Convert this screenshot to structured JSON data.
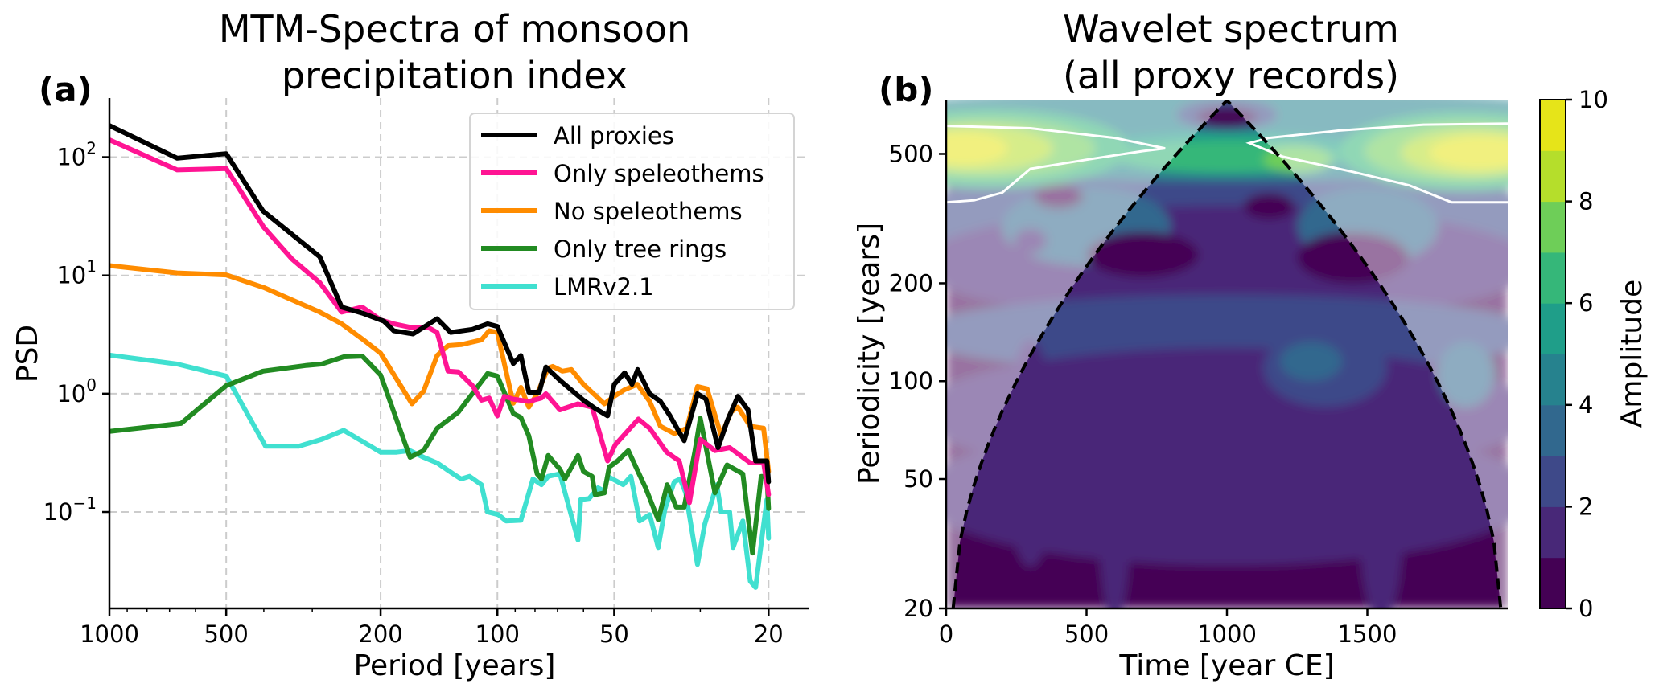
{
  "panel_a": {
    "label": "(a)",
    "title_line1": "MTM-Spectra of monsoon",
    "title_line2": "precipitation index"
  },
  "panel_b": {
    "label": "(b)",
    "title_line1": "Wavelet spectrum",
    "title_line2": "(all proxy records)"
  },
  "chart_data": [
    {
      "type": "line",
      "title": "MTM-Spectra of monsoon precipitation index",
      "xlabel": "Period [years]",
      "ylabel": "PSD",
      "xscale": "log",
      "yscale": "log",
      "x_inverted": true,
      "xlim": [
        1000,
        15.7
      ],
      "ylim": [
        0.0153,
        316
      ],
      "xticks": [
        1000,
        500,
        200,
        100,
        50,
        20
      ],
      "xtick_labels": [
        "1000",
        "500",
        "200",
        "100",
        "50",
        "20"
      ],
      "yticks": [
        0.1,
        1,
        10,
        100
      ],
      "ytick_labels": [
        {
          "base": "10",
          "exp": "−1"
        },
        {
          "base": "10",
          "exp": "0"
        },
        {
          "base": "10",
          "exp": "1"
        },
        {
          "base": "10",
          "exp": "2"
        }
      ],
      "grid": true,
      "legend_position": "top-right",
      "series": [
        {
          "name": "All proxies",
          "color": "#000000",
          "x": [
            1000,
            669,
            500,
            402,
            287,
            252,
            223,
            196,
            185,
            165,
            143,
            132,
            116,
            106,
            100,
            91,
            87,
            83,
            78,
            75,
            69,
            65,
            60,
            56,
            52,
            50,
            47,
            45,
            43.5,
            40.5,
            38,
            36,
            33,
            30.5,
            29,
            27,
            25.5,
            24,
            22.6,
            21.6,
            20.2,
            20
          ],
          "y": [
            185,
            98,
            107,
            35,
            14.4,
            5.4,
            4.8,
            4.1,
            3.4,
            3.2,
            4.3,
            3.3,
            3.5,
            3.9,
            3.7,
            1.8,
            2.1,
            1.03,
            1.03,
            1.68,
            1.3,
            1.1,
            0.88,
            0.75,
            0.65,
            1.2,
            1.5,
            1.2,
            1.6,
            1.0,
            0.86,
            0.66,
            0.4,
            1.0,
            0.9,
            0.35,
            0.6,
            0.95,
            0.73,
            0.27,
            0.27,
            0.18
          ]
        },
        {
          "name": "Only speleothems",
          "color": "#ff1493",
          "x": [
            1000,
            669,
            500,
            400,
            338,
            287,
            252,
            223,
            200,
            185,
            165,
            150,
            143,
            134,
            126,
            116,
            110,
            105,
            100,
            96,
            91,
            83,
            77,
            75,
            69,
            62,
            57,
            52,
            49.7,
            43.3,
            40.5,
            36.6,
            34,
            32,
            30,
            27.5,
            25.2,
            22.3,
            20.6,
            20
          ],
          "y": [
            140,
            78,
            80,
            25.5,
            13.7,
            8.7,
            4.9,
            5.4,
            4.2,
            3.9,
            3.6,
            3.6,
            3.3,
            1.55,
            1.53,
            1.17,
            0.88,
            0.92,
            0.65,
            0.95,
            0.9,
            0.86,
            0.92,
            1.0,
            0.73,
            0.82,
            0.77,
            0.27,
            0.37,
            0.61,
            0.51,
            0.32,
            0.27,
            0.12,
            0.41,
            0.33,
            0.35,
            0.26,
            0.26,
            0.14
          ]
        },
        {
          "name": "No speleothems",
          "color": "#ff8c00",
          "x": [
            1000,
            669,
            500,
            400,
            338,
            287,
            252,
            223,
            200,
            166,
            155,
            143,
            134,
            124,
            110,
            105,
            100,
            96,
            91,
            87,
            83,
            79,
            74,
            72,
            68,
            64.5,
            60,
            55,
            53,
            50,
            47,
            43.6,
            40.5,
            38,
            35,
            32.5,
            30.5,
            28.8,
            26.5,
            25,
            24,
            22.3,
            20.6,
            20
          ],
          "y": [
            12.1,
            10.5,
            10.1,
            7.9,
            6.2,
            4.9,
            3.9,
            2.9,
            2.2,
            0.82,
            1.05,
            2.1,
            2.55,
            2.6,
            2.85,
            3.4,
            3.3,
            1.8,
            0.83,
            1.13,
            0.77,
            1.0,
            1.65,
            1.7,
            1.55,
            1.6,
            1.2,
            0.92,
            0.82,
            0.95,
            1.08,
            1.2,
            0.86,
            0.53,
            0.46,
            0.51,
            1.15,
            1.1,
            0.44,
            0.7,
            0.77,
            0.53,
            0.51,
            0.22
          ]
        },
        {
          "name": "Only tree rings",
          "color": "#228b22",
          "x": [
            1000,
            654,
            500,
            402,
            312,
            284,
            249,
            223,
            200,
            168,
            155,
            143,
            126,
            106,
            100,
            91,
            87,
            83,
            79,
            77,
            74,
            69,
            67,
            62,
            60,
            57,
            56,
            53,
            51.5,
            49,
            46,
            41.5,
            38.5,
            36.5,
            34.6,
            33,
            31,
            30,
            27.5,
            25.6,
            23.3,
            22,
            20.9,
            20.2,
            20
          ],
          "y": [
            0.48,
            0.56,
            1.17,
            1.55,
            1.73,
            1.78,
            2.05,
            2.08,
            1.44,
            0.29,
            0.33,
            0.51,
            0.7,
            1.48,
            1.41,
            0.68,
            0.63,
            0.44,
            0.21,
            0.19,
            0.3,
            0.23,
            0.19,
            0.3,
            0.22,
            0.2,
            0.14,
            0.145,
            0.24,
            0.27,
            0.33,
            0.16,
            0.086,
            0.17,
            0.11,
            0.11,
            0.32,
            0.62,
            0.145,
            0.25,
            0.21,
            0.045,
            0.2,
            0.2,
            0.107
          ]
        },
        {
          "name": "LMRv2.1",
          "color": "#40e0d0",
          "x": [
            1000,
            669,
            500,
            396,
            325,
            284,
            249,
            200,
            182,
            168,
            155,
            143,
            130,
            124,
            118,
            110,
            106,
            99.5,
            95,
            87,
            81,
            77,
            74,
            69,
            62,
            61,
            58,
            55,
            53,
            52,
            47.4,
            45.3,
            43,
            40.5,
            38.5,
            37,
            35,
            33.8,
            32.7,
            30.5,
            29.2,
            27.2,
            26.5,
            25.2,
            24.7,
            23.3,
            22.3,
            21.6,
            20.7,
            20.2,
            20
          ],
          "y": [
            2.12,
            1.78,
            1.41,
            0.36,
            0.36,
            0.41,
            0.49,
            0.32,
            0.32,
            0.33,
            0.29,
            0.26,
            0.21,
            0.19,
            0.2,
            0.17,
            0.1,
            0.095,
            0.084,
            0.085,
            0.19,
            0.17,
            0.2,
            0.21,
            0.058,
            0.127,
            0.13,
            0.16,
            0.15,
            0.2,
            0.17,
            0.2,
            0.084,
            0.095,
            0.05,
            0.106,
            0.18,
            0.19,
            0.145,
            0.036,
            0.079,
            0.17,
            0.1,
            0.1,
            0.05,
            0.084,
            0.026,
            0.023,
            0.069,
            0.127,
            0.06
          ]
        }
      ]
    },
    {
      "type": "heatmap",
      "title": "Wavelet spectrum (all proxy records)",
      "xlabel": "Time [year CE]",
      "ylabel": "Periodicity [years]",
      "xlim": [
        0,
        2000
      ],
      "ylim": [
        20,
        730
      ],
      "yscale": "log",
      "xticks": [
        0,
        500,
        1000,
        1500
      ],
      "xtick_labels": [
        "0",
        "500",
        "1000",
        "1500"
      ],
      "yticks": [
        20,
        50,
        100,
        200,
        500
      ],
      "ytick_labels": [
        "20",
        "50",
        "100",
        "200",
        "500"
      ],
      "colorbar": {
        "label": "Amplitude",
        "range": [
          0,
          10
        ],
        "levels": [
          0,
          1,
          2,
          3,
          4,
          5,
          6,
          7,
          8,
          9,
          10
        ],
        "ticks": [
          0,
          2,
          4,
          6,
          8,
          10
        ],
        "tick_labels": [
          "0",
          "2",
          "4",
          "6",
          "8",
          "10"
        ],
        "colors": [
          "#440154",
          "#482878",
          "#3e4989",
          "#31688e",
          "#26828e",
          "#1f9e89",
          "#35b779",
          "#6ece58",
          "#b5de2b",
          "#e6e419"
        ]
      },
      "cone_of_influence": {
        "style": "dashed black",
        "apex_time": 1000,
        "apex_period": 730,
        "base_times": [
          25,
          1975
        ],
        "base_period": 20
      },
      "significance_contour": "white line",
      "features": [
        {
          "description": "high amplitude band (8-10) near period 450-600 at times 0-300 and 1600-2000 (outside cone)",
          "amplitude": 9.5
        },
        {
          "description": "moderate amplitude band (5-7) near period 450-550 at time 700-1300 inside cone",
          "amplitude": 6
        },
        {
          "description": "low amplitude (0-2) for periods below ~300 inside cone",
          "amplitude": 1
        }
      ]
    }
  ]
}
